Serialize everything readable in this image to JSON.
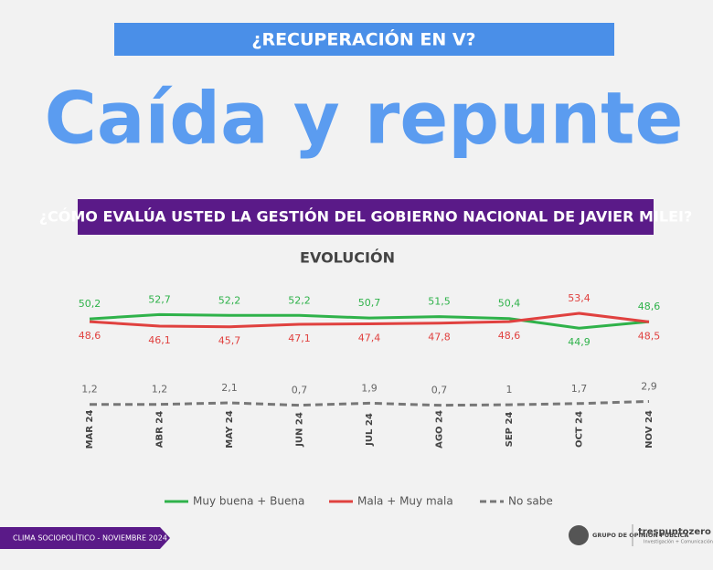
{
  "header": {
    "kicker": "¿RECUPERACIÓN EN V?",
    "headline": "Caída y repunte"
  },
  "chart_data": {
    "type": "line",
    "title": "¿CÓMO EVALÚA USTED LA GESTIÓN DEL GOBIERNO NACIONAL DE JAVIER MILEI?",
    "subtitle": "EVOLUCIÓN",
    "categories": [
      "MAR 24",
      "ABR 24",
      "MAY 24",
      "JUN 24",
      "JUL 24",
      "AGO 24",
      "SEP 24",
      "OCT 24",
      "NOV 24"
    ],
    "series": [
      {
        "name": "Muy buena + Buena",
        "color": "#2fb24a",
        "line_style": "solid",
        "values": [
          50.2,
          52.7,
          52.2,
          52.2,
          50.7,
          51.5,
          50.4,
          44.9,
          48.6
        ],
        "value_labels": [
          "50,2",
          "52,7",
          "52,2",
          "52,2",
          "50,7",
          "51,5",
          "50,4",
          "44,9",
          "48,6"
        ]
      },
      {
        "name": "Mala + Muy mala",
        "color": "#e0413f",
        "line_style": "solid",
        "values": [
          48.6,
          46.1,
          45.7,
          47.1,
          47.4,
          47.8,
          48.6,
          53.4,
          48.5
        ],
        "value_labels": [
          "48,6",
          "46,1",
          "45,7",
          "47,1",
          "47,4",
          "47,8",
          "48,6",
          "53,4",
          "48,5"
        ]
      },
      {
        "name": "No sabe",
        "color": "#777777",
        "line_style": "dashed",
        "values": [
          1.2,
          1.2,
          2.1,
          0.7,
          1.9,
          0.7,
          1,
          1.7,
          2.9
        ],
        "value_labels": [
          "1,2",
          "1,2",
          "2,1",
          "0,7",
          "1,9",
          "0,7",
          "1",
          "1,7",
          "2,9"
        ]
      }
    ]
  },
  "footer": {
    "note": "CLIMA SOCIOPOLÍTICO - NOVIEMBRE 2024",
    "logo_left": "GRUPO DE OPINIÓN PÚBLICA",
    "logo_right": "trespuntozero",
    "logo_right_tag": "Investigación + Comunicación"
  }
}
